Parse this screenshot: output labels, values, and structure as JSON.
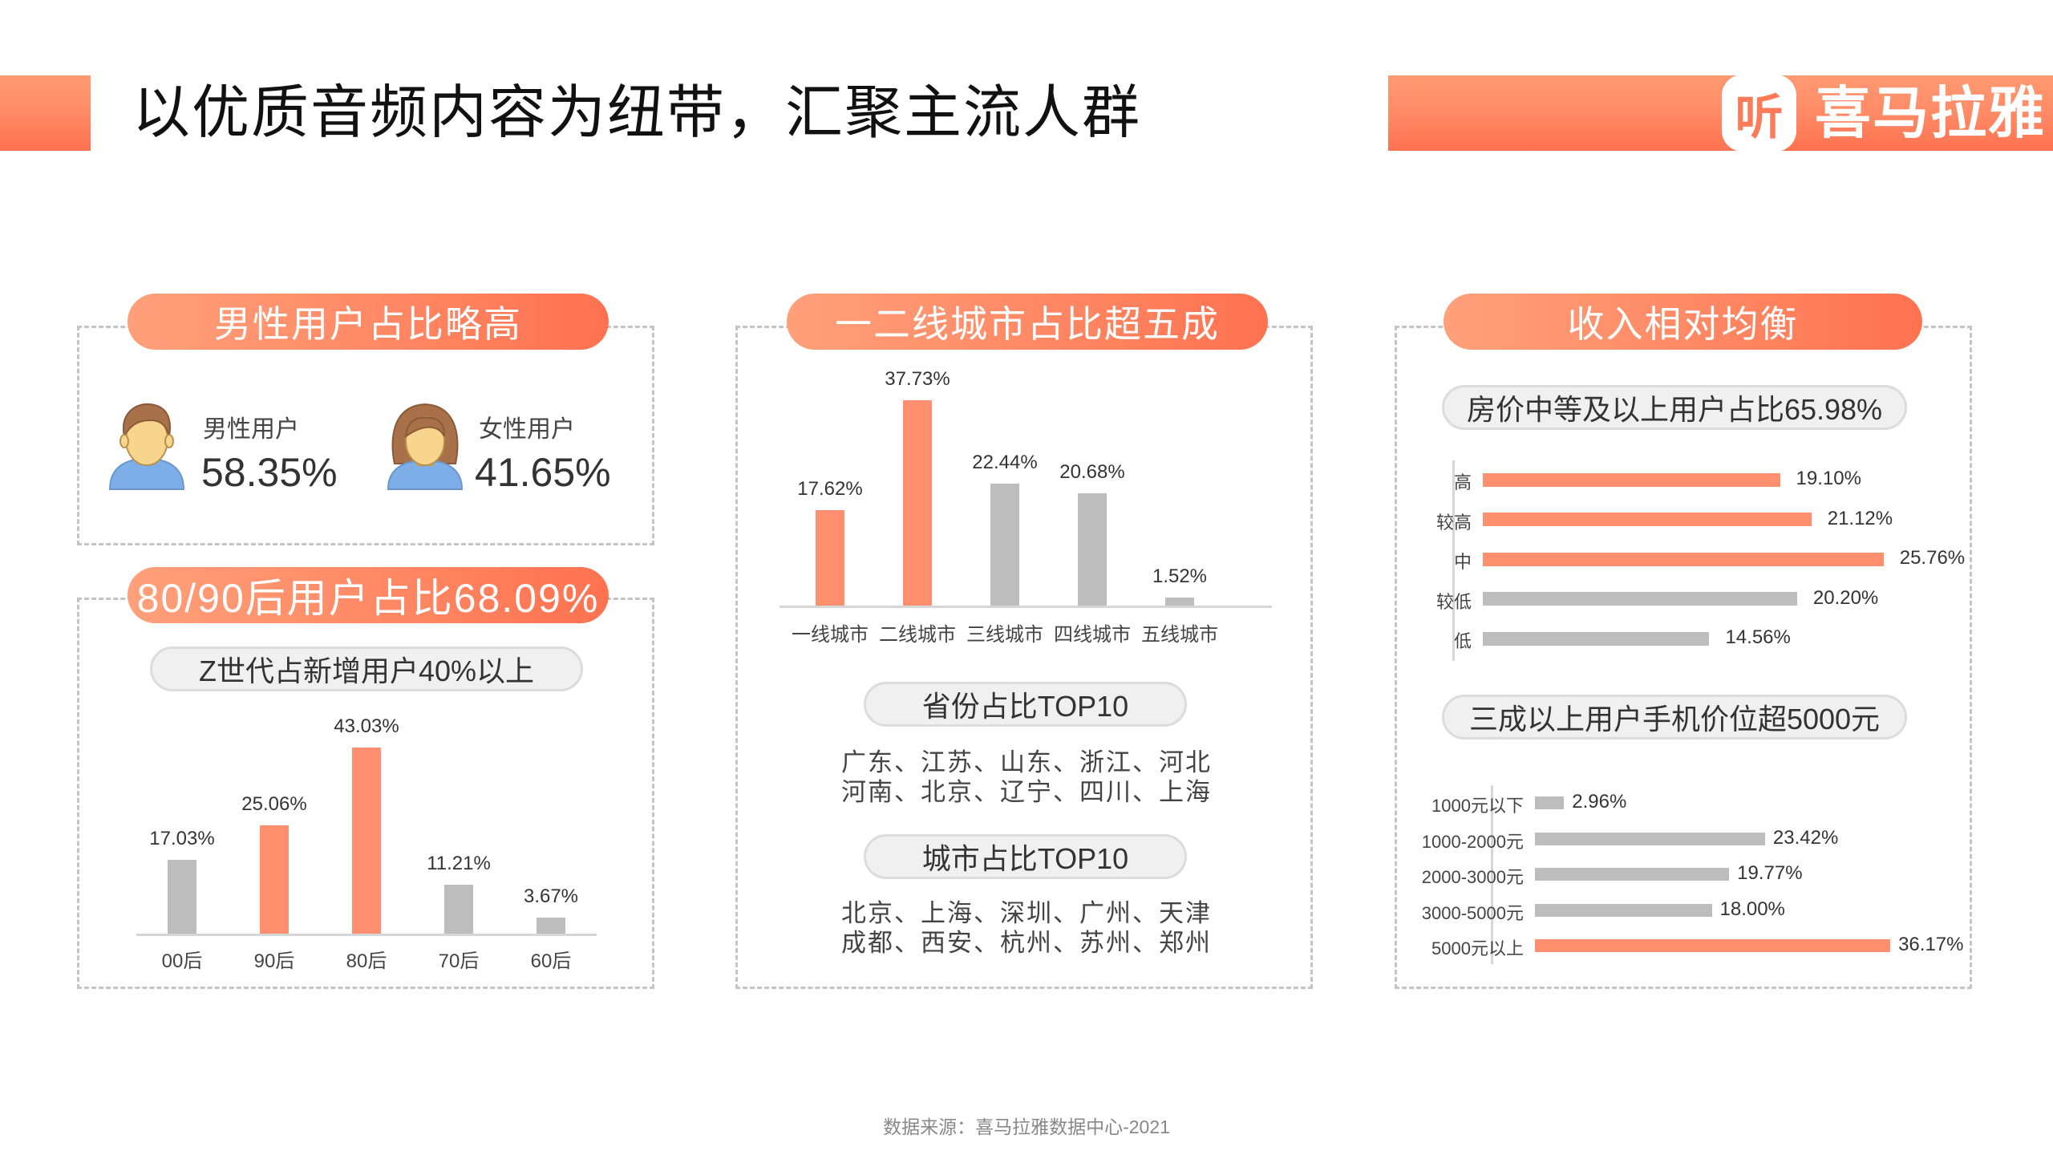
{
  "header": {
    "title": "以优质音频内容为纽带，汇聚主流人群",
    "brand_icon_glyph": "听",
    "brand_name": "喜马拉雅",
    "accent_color": "#ff7a56"
  },
  "gender_panel": {
    "title": "男性用户占比略高",
    "male": {
      "label": "男性用户",
      "value": "58.35%",
      "icon": "male-avatar-icon"
    },
    "female": {
      "label": "女性用户",
      "value": "41.65%",
      "icon": "female-avatar-icon"
    }
  },
  "age_panel": {
    "title": "80/90后用户占比68.09%",
    "subtitle": "Z世代占新增用户40%以上"
  },
  "city_panel": {
    "title": "一二线城市占比超五成",
    "province_title": "省份占比TOP10",
    "province_lines": [
      "广东、江苏、山东、浙江、河北",
      "河南、北京、辽宁、四川、上海"
    ],
    "city_title": "城市占比TOP10",
    "city_lines": [
      "北京、上海、深圳、广州、天津",
      "成都、西安、杭州、苏州、郑州"
    ]
  },
  "income_panel": {
    "title": "收入相对均衡",
    "house_subtitle": "房价中等及以上用户占比65.98%",
    "phone_subtitle": "三成以上用户手机价位超5000元"
  },
  "footer": {
    "source": "数据来源：喜马拉雅数据中心-2021"
  },
  "chart_data": [
    {
      "type": "bar",
      "title": "80/90后用户占比68.09%",
      "categories": [
        "00后",
        "90后",
        "80后",
        "70后",
        "60后"
      ],
      "values": [
        17.03,
        25.06,
        43.03,
        11.21,
        3.67
      ],
      "labels": [
        "17.03%",
        "25.06%",
        "43.03%",
        "11.21%",
        "3.67%"
      ],
      "highlight": [
        false,
        true,
        true,
        false,
        false
      ],
      "xlabel": "",
      "ylabel": "",
      "grid": false
    },
    {
      "type": "bar",
      "title": "一二线城市占比超五成",
      "categories": [
        "一线城市",
        "二线城市",
        "三线城市",
        "四线城市",
        "五线城市"
      ],
      "values": [
        17.62,
        37.73,
        22.44,
        20.68,
        1.52
      ],
      "labels": [
        "17.62%",
        "37.73%",
        "22.44%",
        "20.68%",
        "1.52%"
      ],
      "highlight": [
        true,
        true,
        false,
        false,
        false
      ],
      "xlabel": "",
      "ylabel": "",
      "grid": false
    },
    {
      "type": "bar",
      "orientation": "horizontal",
      "title": "房价中等及以上用户占比65.98%",
      "categories": [
        "高",
        "较高",
        "中",
        "较低",
        "低"
      ],
      "values": [
        19.1,
        21.12,
        25.76,
        20.2,
        14.56
      ],
      "labels": [
        "19.10%",
        "21.12%",
        "25.76%",
        "20.20%",
        "14.56%"
      ],
      "highlight": [
        true,
        true,
        true,
        false,
        false
      ],
      "xlabel": "",
      "ylabel": "",
      "grid": false
    },
    {
      "type": "bar",
      "orientation": "horizontal",
      "title": "三成以上用户手机价位超5000元",
      "categories": [
        "1000元以下",
        "1000-2000元",
        "2000-3000元",
        "3000-5000元",
        "5000元以上"
      ],
      "values": [
        2.96,
        23.42,
        19.77,
        18.0,
        36.17
      ],
      "labels": [
        "2.96%",
        "23.42%",
        "19.77%",
        "18.00%",
        "36.17%"
      ],
      "highlight": [
        false,
        false,
        false,
        false,
        true
      ],
      "xlabel": "",
      "ylabel": "",
      "grid": false
    }
  ],
  "colors": {
    "highlight": "#ff8f6e",
    "neutral": "#bdbdbd",
    "pill_start": "#ffa07a",
    "pill_end": "#ff7250"
  }
}
